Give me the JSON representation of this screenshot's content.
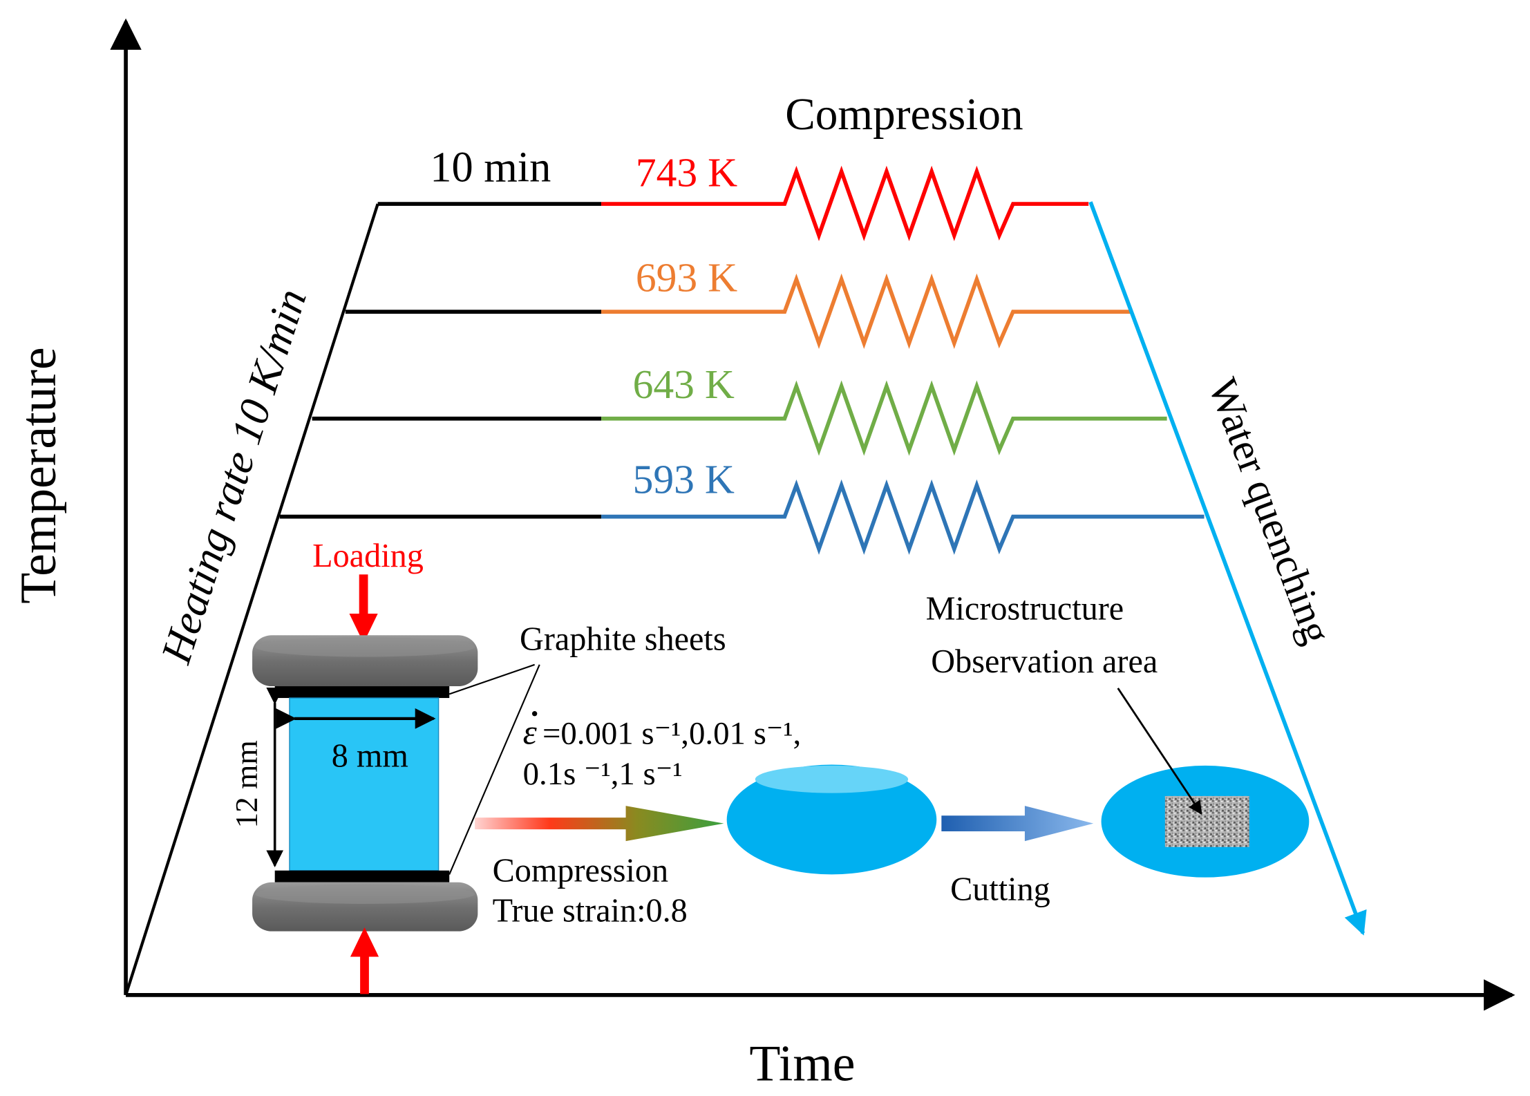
{
  "axes": {
    "y_label": "Temperature",
    "x_label": "Time"
  },
  "heating": {
    "label": "Heating rate 10  K/min",
    "hold_label": "10 min"
  },
  "compression_label": "Compression",
  "quench_label": "Water quenching",
  "temperatures": [
    {
      "label": "743 K",
      "color": "#ff0000"
    },
    {
      "label": "693 K",
      "color": "#ed7d31"
    },
    {
      "label": "643 K",
      "color": "#70ad47"
    },
    {
      "label": "593 K",
      "color": "#2e75b6"
    }
  ],
  "colors": {
    "axis": "#000000",
    "hold": "#000000",
    "quench": "#00b0f0",
    "loading": "#ff0000",
    "specimen": "#29c5f6",
    "platen": "#7f7f7f",
    "graphite": "#000000",
    "sample": "#00b0f0"
  },
  "specimen": {
    "loading_label": "Loading",
    "graphite_label": "Graphite sheets",
    "diameter_label": "8 mm",
    "height_label": "12 mm"
  },
  "strain_rate": {
    "line1": "=0.001 s⁻¹,0.01 s⁻¹,",
    "line2": "0.1s ⁻¹,1 s⁻¹"
  },
  "process": {
    "compression_line1": "Compression",
    "compression_line2": "True strain:0.8",
    "cutting_label": "Cutting",
    "micro_line1": "Microstructure",
    "micro_line2": "Observation area"
  }
}
